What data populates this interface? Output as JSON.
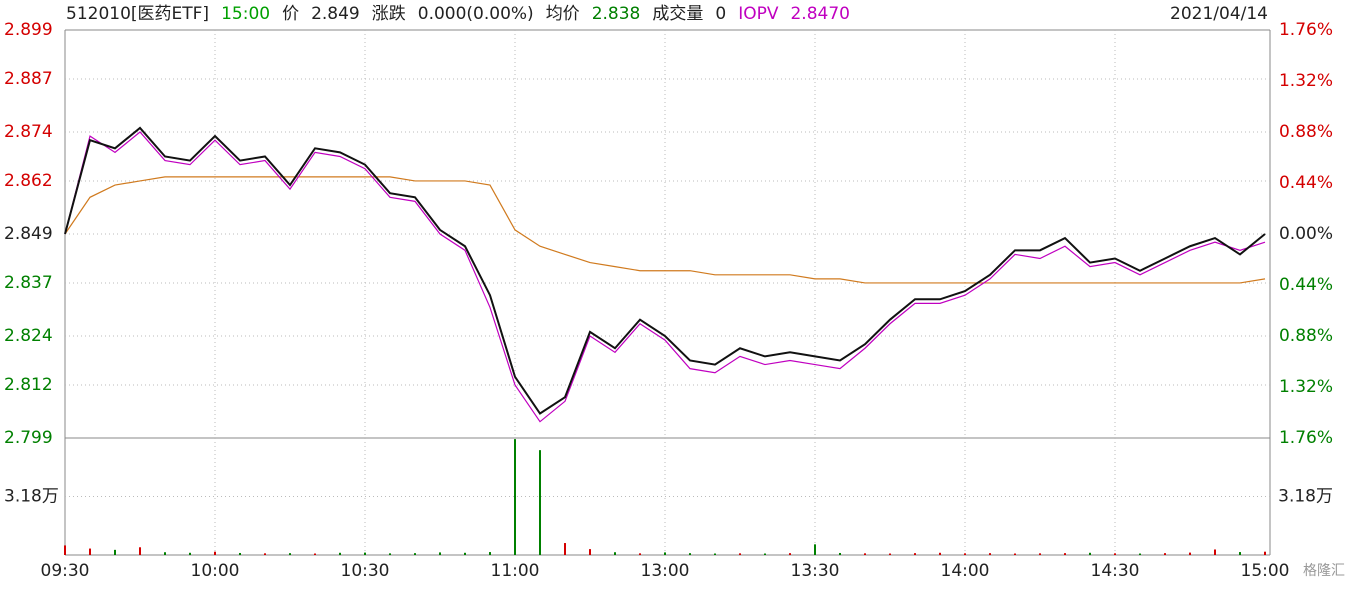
{
  "chart_data": {
    "type": "intraday",
    "header": [
      {
        "text": "512010[医药ETF]",
        "color": "#222222"
      },
      {
        "text": "15:00",
        "color": "#00a000"
      },
      {
        "text": "价",
        "color": "#222222"
      },
      {
        "text": "2.849",
        "color": "#222222"
      },
      {
        "text": "涨跌",
        "color": "#222222"
      },
      {
        "text": "0.000(0.00%)",
        "color": "#222222"
      },
      {
        "text": "均价",
        "color": "#222222"
      },
      {
        "text": "2.838",
        "color": "#008000"
      },
      {
        "text": "成交量",
        "color": "#222222"
      },
      {
        "text": "0",
        "color": "#222222"
      },
      {
        "text": "IOPV",
        "color": "#c000c0"
      },
      {
        "text": "2.8470",
        "color": "#c000c0"
      }
    ],
    "date": "2021/04/14",
    "watermark": "格隆汇",
    "categories": [
      "09:30",
      null,
      null,
      null,
      null,
      null,
      "10:00",
      null,
      null,
      null,
      null,
      null,
      "10:30",
      null,
      null,
      null,
      null,
      null,
      "11:00",
      null,
      null,
      null,
      null,
      null,
      "13:00",
      null,
      null,
      null,
      null,
      null,
      "13:30",
      null,
      null,
      null,
      null,
      null,
      "14:00",
      null,
      null,
      null,
      null,
      null,
      "14:30",
      null,
      null,
      null,
      null,
      null,
      "15:00"
    ],
    "series": [
      {
        "name": "价",
        "color": "#111111",
        "values": [
          2.849,
          2.872,
          2.87,
          2.875,
          2.868,
          2.867,
          2.873,
          2.867,
          2.868,
          2.861,
          2.87,
          2.869,
          2.866,
          2.859,
          2.858,
          2.85,
          2.846,
          2.834,
          2.814,
          2.805,
          2.809,
          2.825,
          2.821,
          2.828,
          2.824,
          2.818,
          2.817,
          2.821,
          2.819,
          2.82,
          2.819,
          2.818,
          2.822,
          2.828,
          2.833,
          2.833,
          2.835,
          2.839,
          2.845,
          2.845,
          2.848,
          2.842,
          2.843,
          2.84,
          2.843,
          2.846,
          2.848,
          2.844,
          2.849
        ]
      },
      {
        "name": "IOPV",
        "color": "#c000c0",
        "values": [
          2.849,
          2.873,
          2.869,
          2.874,
          2.867,
          2.866,
          2.872,
          2.866,
          2.867,
          2.86,
          2.869,
          2.868,
          2.865,
          2.858,
          2.857,
          2.849,
          2.845,
          2.831,
          2.812,
          2.803,
          2.808,
          2.824,
          2.82,
          2.827,
          2.823,
          2.816,
          2.815,
          2.819,
          2.817,
          2.818,
          2.817,
          2.816,
          2.821,
          2.827,
          2.832,
          2.832,
          2.834,
          2.838,
          2.844,
          2.843,
          2.846,
          2.841,
          2.842,
          2.839,
          2.842,
          2.845,
          2.847,
          2.845,
          2.847
        ]
      },
      {
        "name": "均价",
        "color": "#d07a1e",
        "values": [
          2.849,
          2.858,
          2.861,
          2.862,
          2.863,
          2.863,
          2.863,
          2.863,
          2.863,
          2.863,
          2.863,
          2.863,
          2.863,
          2.863,
          2.862,
          2.862,
          2.862,
          2.861,
          2.85,
          2.846,
          2.844,
          2.842,
          2.841,
          2.84,
          2.84,
          2.84,
          2.839,
          2.839,
          2.839,
          2.839,
          2.838,
          2.838,
          2.837,
          2.837,
          2.837,
          2.837,
          2.837,
          2.837,
          2.837,
          2.837,
          2.837,
          2.837,
          2.837,
          2.837,
          2.837,
          2.837,
          2.837,
          2.837,
          2.838
        ]
      }
    ],
    "volume": [
      5200,
      3500,
      2800,
      4200,
      1500,
      1200,
      1800,
      1100,
      900,
      1000,
      800,
      1200,
      1300,
      900,
      1000,
      1400,
      1200,
      1600,
      63000,
      57000,
      6500,
      3200,
      1500,
      900,
      1400,
      1000,
      800,
      900,
      800,
      1000,
      5800,
      1100,
      900,
      800,
      1000,
      1200,
      900,
      1000,
      800,
      900,
      1000,
      1200,
      900,
      800,
      1000,
      1300,
      3000,
      1600,
      1800
    ],
    "ylim": [
      2.799,
      2.899
    ],
    "yticks": [
      2.899,
      2.887,
      2.874,
      2.862,
      2.849,
      2.837,
      2.824,
      2.812,
      2.799
    ],
    "y2lim": [
      -1.76,
      1.76
    ],
    "y2ticks": [
      {
        "value": 1.76,
        "label": "1.76%"
      },
      {
        "value": 1.32,
        "label": "1.32%"
      },
      {
        "value": 0.88,
        "label": "0.88%"
      },
      {
        "value": 0.44,
        "label": "0.44%"
      },
      {
        "value": 0,
        "label": "0.00%"
      },
      {
        "value": -0.44,
        "label": "0.44%"
      },
      {
        "value": -0.88,
        "label": "0.88%"
      },
      {
        "value": -1.32,
        "label": "1.32%"
      },
      {
        "value": -1.76,
        "label": "1.76%"
      }
    ],
    "volume_lim": [
      0,
      63600
    ],
    "volume_ticks": [
      {
        "value": 31800,
        "label": "3.18万"
      }
    ],
    "up_color": "#d40000",
    "down_color": "#008000",
    "grid": true
  }
}
